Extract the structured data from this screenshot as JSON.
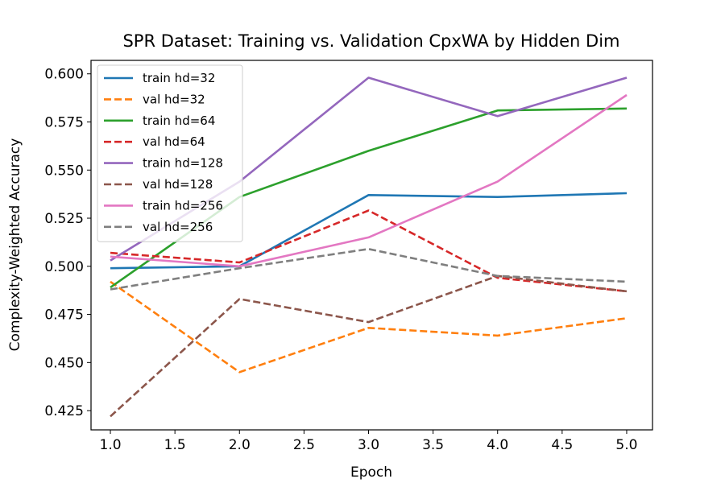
{
  "chart_data": {
    "type": "line",
    "title": "SPR Dataset: Training vs. Validation CpxWA by Hidden Dim",
    "xlabel": "Epoch",
    "ylabel": "Complexity-Weighted Accuracy",
    "x": [
      1,
      2,
      3,
      4,
      5
    ],
    "xlim": [
      0.85,
      5.2
    ],
    "ylim": [
      0.415,
      0.607
    ],
    "xticks": [
      "1.0",
      "1.5",
      "2.0",
      "2.5",
      "3.0",
      "3.5",
      "4.0",
      "4.5",
      "5.0"
    ],
    "yticks": [
      "0.425",
      "0.450",
      "0.475",
      "0.500",
      "0.525",
      "0.550",
      "0.575",
      "0.600"
    ],
    "grid": false,
    "legend_position": "top-left",
    "series": [
      {
        "name": "train hd=32",
        "color": "#1f77b4",
        "dash": "solid",
        "values": [
          0.499,
          0.5,
          0.537,
          0.536,
          0.538
        ]
      },
      {
        "name": "val hd=32",
        "color": "#ff7f0e",
        "dash": "dashed",
        "values": [
          0.492,
          0.445,
          0.468,
          0.464,
          0.473
        ]
      },
      {
        "name": "train hd=64",
        "color": "#2ca02c",
        "dash": "solid",
        "values": [
          0.489,
          0.536,
          0.56,
          0.581,
          0.582
        ]
      },
      {
        "name": "val hd=64",
        "color": "#d62728",
        "dash": "dashed",
        "values": [
          0.507,
          0.502,
          0.529,
          0.494,
          0.487
        ]
      },
      {
        "name": "train hd=128",
        "color": "#9467bd",
        "dash": "solid",
        "values": [
          0.503,
          0.544,
          0.598,
          0.578,
          0.598
        ]
      },
      {
        "name": "val hd=128",
        "color": "#8c564b",
        "dash": "dashed",
        "values": [
          0.422,
          0.483,
          0.471,
          0.495,
          0.487
        ]
      },
      {
        "name": "train hd=256",
        "color": "#e377c2",
        "dash": "solid",
        "values": [
          0.505,
          0.5,
          0.515,
          0.544,
          0.589
        ]
      },
      {
        "name": "val hd=256",
        "color": "#7f7f7f",
        "dash": "dashed",
        "values": [
          0.488,
          0.499,
          0.509,
          0.495,
          0.492
        ]
      }
    ]
  }
}
